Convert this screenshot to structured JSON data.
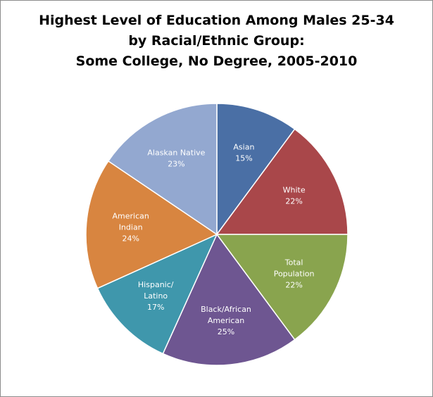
{
  "chart_data": {
    "type": "pie",
    "title_lines": [
      "Highest Level of Education Among Males 25-34",
      "by Racial/Ethnic Group:",
      "Some College, No Degree, 2005-2010"
    ],
    "start_angle_deg": 0,
    "direction": "clockwise",
    "slices": [
      {
        "name": "Asian",
        "value": 15,
        "label": "15%",
        "color": "#4a6fa5"
      },
      {
        "name": "White",
        "value": 22,
        "label": "22%",
        "color": "#a9474a"
      },
      {
        "name": "Total Population",
        "value": 22,
        "label": "22%",
        "color": "#89a44e"
      },
      {
        "name": "Black/African American",
        "value": 25,
        "label": "25%",
        "color": "#6e5691"
      },
      {
        "name": "Hispanic/Latino",
        "value": 17,
        "label": "17%",
        "color": "#3f97ac"
      },
      {
        "name": "American Indian",
        "value": 24,
        "label": "24%",
        "color": "#d88540"
      },
      {
        "name": "Alaskan Native",
        "value": 23,
        "label": "23%",
        "color": "#93a8d0"
      }
    ]
  }
}
